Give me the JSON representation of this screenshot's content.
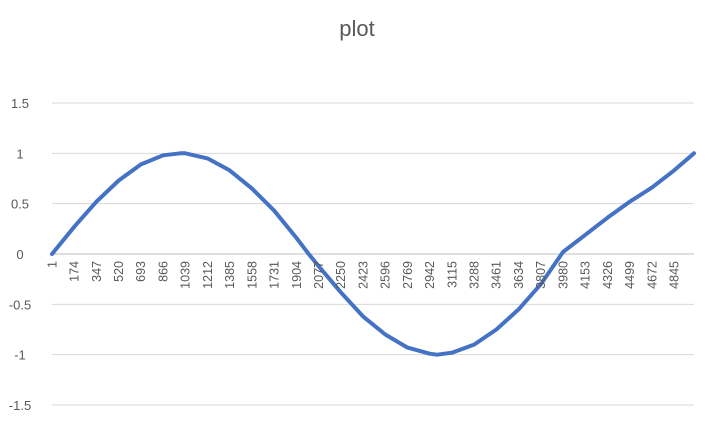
{
  "chart_data": {
    "type": "line",
    "title": "plot",
    "xlabel": "",
    "ylabel": "",
    "x_categories": [
      "1",
      "174",
      "347",
      "520",
      "693",
      "866",
      "1039",
      "1212",
      "1385",
      "1558",
      "1731",
      "1904",
      "2077",
      "2250",
      "2423",
      "2596",
      "2769",
      "2942",
      "3115",
      "3288",
      "3461",
      "3634",
      "3807",
      "3980",
      "4153",
      "4326",
      "4499",
      "4672",
      "4845"
    ],
    "x_range": [
      1,
      5000
    ],
    "ylim": [
      -1.5,
      1.5
    ],
    "y_ticks": [
      "1.5",
      "1",
      "0.5",
      "0",
      "-0.5",
      "-1",
      "-1.5"
    ],
    "grid": true,
    "legend": "none",
    "series": [
      {
        "color": "#4472c4",
        "x": [
          1,
          174,
          347,
          520,
          693,
          866,
          1000,
          1039,
          1212,
          1385,
          1558,
          1731,
          1904,
          2000,
          2077,
          2250,
          2423,
          2596,
          2769,
          2942,
          3000,
          3115,
          3288,
          3461,
          3634,
          3807,
          3980,
          4153,
          4326,
          4499,
          4672,
          4845,
          5000
        ],
        "values": [
          0.0,
          0.27,
          0.52,
          0.73,
          0.89,
          0.98,
          1.0,
          1.0,
          0.95,
          0.83,
          0.65,
          0.43,
          0.16,
          0.0,
          -0.12,
          -0.38,
          -0.62,
          -0.8,
          -0.93,
          -0.99,
          -1.0,
          -0.98,
          -0.9,
          -0.75,
          -0.55,
          -0.3,
          0.02,
          0.19,
          0.36,
          0.52,
          0.66,
          0.83,
          1.0
        ]
      }
    ]
  }
}
